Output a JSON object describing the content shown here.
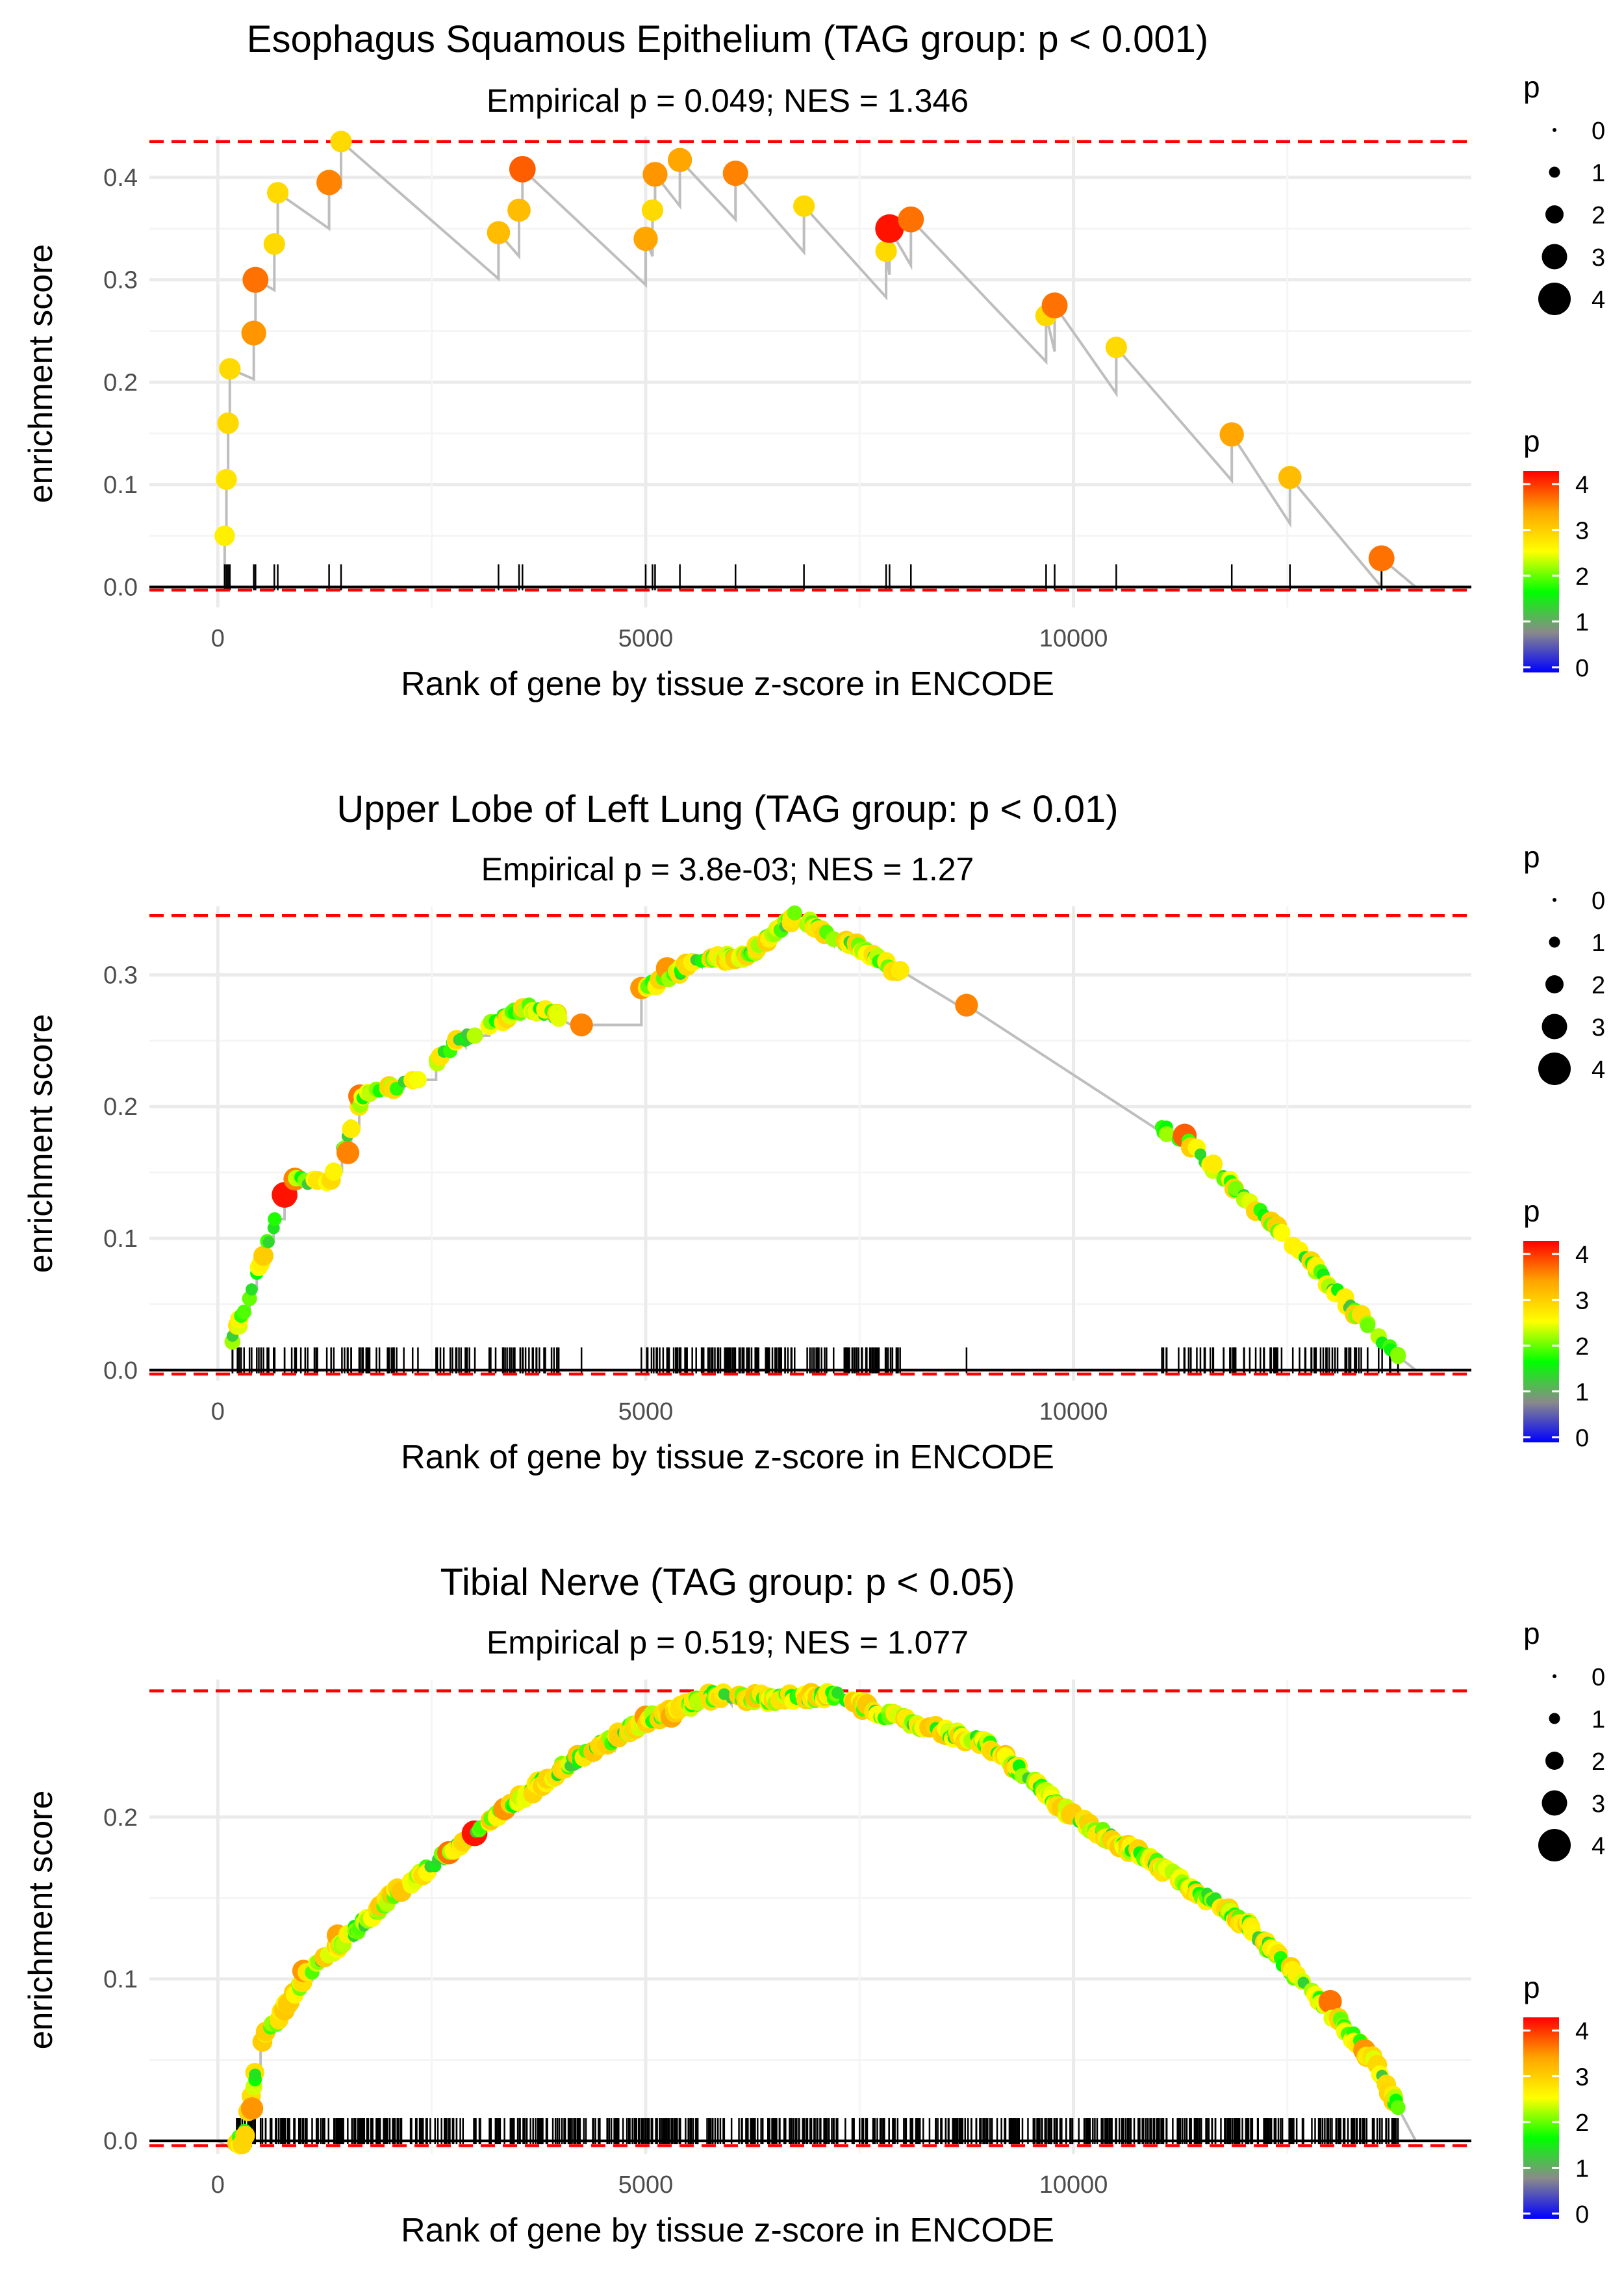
{
  "chart_data": [
    {
      "type": "line",
      "title": "Esophagus Squamous Epithelium (TAG group: p < 0.001)",
      "subtitle": "Empirical p = 0.049; NES = 1.346",
      "xlabel": "Rank of gene by tissue z-score in ENCODE",
      "ylabel": "enrichment score",
      "xlim": [
        -800,
        14650
      ],
      "ylim": [
        -0.02,
        0.44
      ],
      "xticks": [
        0,
        5000,
        10000
      ],
      "xtick_labels": [
        "0",
        "5000",
        "10000"
      ],
      "yticks": [
        0.0,
        0.1,
        0.2,
        0.3,
        0.4
      ],
      "ytick_labels": [
        "0.0",
        "0.1",
        "0.2",
        "0.3",
        "0.4"
      ],
      "max_es": 0.435,
      "min_es": -0.003,
      "legend_size": {
        "title": "p",
        "levels": [
          "0",
          "1",
          "2",
          "3",
          "4"
        ]
      },
      "legend_color": {
        "title": "p",
        "levels": [
          "0",
          "1",
          "2",
          "3",
          "4"
        ]
      },
      "hits": [
        {
          "rank": 80,
          "es": 0.05,
          "p": 2.8
        },
        {
          "rank": 100,
          "es": 0.105,
          "p": 2.9
        },
        {
          "rank": 120,
          "es": 0.16,
          "p": 3.0
        },
        {
          "rank": 140,
          "es": 0.213,
          "p": 3.0
        },
        {
          "rank": 420,
          "es": 0.248,
          "p": 3.6
        },
        {
          "rank": 440,
          "es": 0.3,
          "p": 3.8
        },
        {
          "rank": 660,
          "es": 0.335,
          "p": 3.0
        },
        {
          "rank": 700,
          "es": 0.385,
          "p": 3.0
        },
        {
          "rank": 1300,
          "es": 0.395,
          "p": 3.7
        },
        {
          "rank": 1440,
          "es": 0.435,
          "p": 3.0
        },
        {
          "rank": 3280,
          "es": 0.346,
          "p": 3.3
        },
        {
          "rank": 3520,
          "es": 0.368,
          "p": 3.3
        },
        {
          "rank": 3560,
          "es": 0.408,
          "p": 3.9
        },
        {
          "rank": 5000,
          "es": 0.34,
          "p": 3.5
        },
        {
          "rank": 5080,
          "es": 0.368,
          "p": 3.0
        },
        {
          "rank": 5110,
          "es": 0.403,
          "p": 3.6
        },
        {
          "rank": 5400,
          "es": 0.417,
          "p": 3.5
        },
        {
          "rank": 6050,
          "es": 0.404,
          "p": 3.7
        },
        {
          "rank": 6850,
          "es": 0.372,
          "p": 3.0
        },
        {
          "rank": 7810,
          "es": 0.328,
          "p": 3.0
        },
        {
          "rank": 7850,
          "es": 0.35,
          "p": 4.3
        },
        {
          "rank": 8100,
          "es": 0.359,
          "p": 3.8
        },
        {
          "rank": 9680,
          "es": 0.265,
          "p": 3.0
        },
        {
          "rank": 9780,
          "es": 0.275,
          "p": 3.8
        },
        {
          "rank": 10500,
          "es": 0.234,
          "p": 3.0
        },
        {
          "rank": 11850,
          "es": 0.149,
          "p": 3.5
        },
        {
          "rank": 12530,
          "es": 0.107,
          "p": 3.3
        },
        {
          "rank": 13600,
          "es": 0.028,
          "p": 3.8
        }
      ],
      "curve_end": [
        14000,
        0.0
      ]
    },
    {
      "type": "line",
      "title": "Upper Lobe of Left Lung (TAG group: p < 0.01)",
      "subtitle": "Empirical p = 3.8e-03; NES = 1.27",
      "xlabel": "Rank of gene by tissue z-score in ENCODE",
      "ylabel": "enrichment score",
      "xlim": [
        -800,
        14650
      ],
      "ylim": [
        -0.008,
        0.352
      ],
      "xticks": [
        0,
        5000,
        10000
      ],
      "xtick_labels": [
        "0",
        "5000",
        "10000"
      ],
      "yticks": [
        0.0,
        0.1,
        0.2,
        0.3
      ],
      "ytick_labels": [
        "0.0",
        "0.1",
        "0.2",
        "0.3"
      ],
      "max_es": 0.345,
      "min_es": -0.003,
      "legend_size": {
        "title": "p",
        "levels": [
          "0",
          "1",
          "2",
          "3",
          "4"
        ]
      },
      "legend_color": {
        "title": "p",
        "levels": [
          "0",
          "1",
          "2",
          "3",
          "4"
        ]
      },
      "hit_count": 320,
      "dense_regions": [
        [
          5000,
          8000
        ],
        [
          150,
          4000
        ],
        [
          11000,
          13800
        ]
      ],
      "curve_knots": [
        [
          0,
          0.0
        ],
        [
          150,
          0.02
        ],
        [
          400,
          0.06
        ],
        [
          700,
          0.12
        ],
        [
          850,
          0.145
        ],
        [
          1300,
          0.14
        ],
        [
          1700,
          0.21
        ],
        [
          2300,
          0.22
        ],
        [
          2800,
          0.25
        ],
        [
          3600,
          0.275
        ],
        [
          4200,
          0.265
        ],
        [
          5000,
          0.29
        ],
        [
          5600,
          0.31
        ],
        [
          6200,
          0.315
        ],
        [
          6750,
          0.345
        ],
        [
          7500,
          0.32
        ],
        [
          8500,
          0.28
        ],
        [
          9500,
          0.26
        ],
        [
          10500,
          0.2
        ],
        [
          11300,
          0.175
        ],
        [
          12500,
          0.1
        ],
        [
          13500,
          0.03
        ],
        [
          14000,
          0.0
        ]
      ],
      "highlight_hits": [
        {
          "rank": 780,
          "es": 0.133,
          "p": 4.3
        },
        {
          "rank": 900,
          "es": 0.145,
          "p": 3.7
        },
        {
          "rank": 1520,
          "es": 0.165,
          "p": 3.7
        },
        {
          "rank": 1660,
          "es": 0.208,
          "p": 3.8
        },
        {
          "rank": 4250,
          "es": 0.262,
          "p": 3.7
        },
        {
          "rank": 4950,
          "es": 0.29,
          "p": 3.6
        },
        {
          "rank": 5250,
          "es": 0.305,
          "p": 3.6
        },
        {
          "rank": 8750,
          "es": 0.277,
          "p": 3.7
        },
        {
          "rank": 11300,
          "es": 0.178,
          "p": 3.9
        }
      ]
    },
    {
      "type": "line",
      "title": "Tibial Nerve (TAG group: p < 0.05)",
      "subtitle": "Empirical p = 0.519; NES = 1.077",
      "xlabel": "Rank of gene by tissue z-score in ENCODE",
      "ylabel": "enrichment score",
      "xlim": [
        -800,
        14650
      ],
      "ylim": [
        -0.008,
        0.285
      ],
      "xticks": [
        0,
        5000,
        10000
      ],
      "xtick_labels": [
        "0",
        "5000",
        "10000"
      ],
      "yticks": [
        0.0,
        0.1,
        0.2
      ],
      "ytick_labels": [
        "0.0",
        "0.1",
        "0.2"
      ],
      "max_es": 0.278,
      "min_es": -0.003,
      "legend_size": {
        "title": "p",
        "levels": [
          "0",
          "1",
          "2",
          "3",
          "4"
        ]
      },
      "legend_color": {
        "title": "p",
        "levels": [
          "0",
          "1",
          "2",
          "3",
          "4"
        ]
      },
      "hit_count": 700,
      "dense_regions": [
        [
          0,
          14000
        ]
      ],
      "curve_knots": [
        [
          0,
          0.0
        ],
        [
          300,
          0.0
        ],
        [
          500,
          0.06
        ],
        [
          1000,
          0.1
        ],
        [
          2000,
          0.15
        ],
        [
          3000,
          0.19
        ],
        [
          4000,
          0.23
        ],
        [
          5000,
          0.26
        ],
        [
          5800,
          0.275
        ],
        [
          6500,
          0.273
        ],
        [
          7200,
          0.275
        ],
        [
          8000,
          0.26
        ],
        [
          9000,
          0.245
        ],
        [
          10000,
          0.2
        ],
        [
          11000,
          0.17
        ],
        [
          12000,
          0.135
        ],
        [
          13000,
          0.08
        ],
        [
          13500,
          0.05
        ],
        [
          14000,
          0.0
        ]
      ],
      "highlight_hits": [
        {
          "rank": 3000,
          "es": 0.19,
          "p": 4.3
        },
        {
          "rank": 2700,
          "es": 0.178,
          "p": 3.8
        },
        {
          "rank": 3350,
          "es": 0.205,
          "p": 3.6
        },
        {
          "rank": 5000,
          "es": 0.262,
          "p": 3.6
        },
        {
          "rank": 5300,
          "es": 0.262,
          "p": 3.5
        },
        {
          "rank": 13000,
          "es": 0.086,
          "p": 3.8
        },
        {
          "rank": 13400,
          "es": 0.056,
          "p": 3.6
        },
        {
          "rank": 400,
          "es": 0.02,
          "p": 3.6
        },
        {
          "rank": 1000,
          "es": 0.105,
          "p": 3.6
        },
        {
          "rank": 1400,
          "es": 0.127,
          "p": 3.5
        }
      ]
    }
  ],
  "colors": {
    "grid": "#ebebeb",
    "max_line": "#ff0000",
    "curve": "#bebebe",
    "axis": "#000000",
    "text": "#000000",
    "tick_text": "#4d4d4d"
  },
  "colorscale": [
    "#0000ff",
    "#8a8a8a",
    "#00ff00",
    "#ffff00",
    "#ffa500",
    "#ff0000"
  ]
}
